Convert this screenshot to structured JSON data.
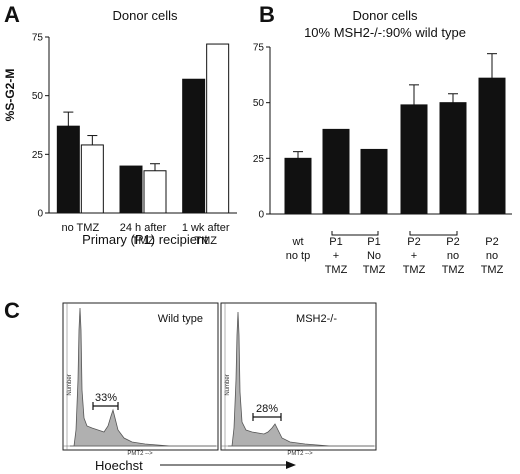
{
  "panels": {
    "a": {
      "letter": "A",
      "title": "Donor cells",
      "xlabel": "Primary (P1) recipient"
    },
    "b": {
      "letter": "B",
      "title_line1": "Donor cells",
      "title_line2": "10% MSH2-/-:90% wild type"
    },
    "c": {
      "letter": "C",
      "x_axis_label": "Hoechst",
      "histograms": [
        {
          "title": "Wild type",
          "percent": "33%",
          "y_label": "Number",
          "x_label": "PMT2 -->"
        },
        {
          "title": "MSH2-/-",
          "percent": "28%",
          "y_label": "Number",
          "x_label": "PMT2 -->"
        }
      ]
    }
  },
  "chart_data": [
    {
      "type": "bar",
      "title": "Donor cells",
      "ylabel": "%S-G2-M",
      "xlabel": "Primary (P1) recipient",
      "ylim": [
        0,
        75
      ],
      "yticks": [
        0,
        25,
        50,
        75
      ],
      "grid": false,
      "categories": [
        [
          "no TMZ"
        ],
        [
          "24 h after",
          "TMZ"
        ],
        [
          "1 wk after",
          "TMZ"
        ]
      ],
      "series": [
        {
          "color": "#111111",
          "values": [
            37,
            20,
            57
          ],
          "errors": [
            6,
            0,
            0
          ]
        },
        {
          "color": "#ffffff",
          "values": [
            29,
            18,
            72
          ],
          "errors": [
            4,
            3,
            0
          ]
        }
      ]
    },
    {
      "type": "bar",
      "title": "Donor cells 10% MSH2-/-:90% wild type",
      "ylim": [
        0,
        75
      ],
      "yticks": [
        0,
        25,
        50,
        75
      ],
      "grid": false,
      "categories": [
        [
          "wt",
          "no tp"
        ],
        [
          "P1",
          "+",
          "TMZ"
        ],
        [
          "P1",
          "No",
          "TMZ"
        ],
        [
          "P2",
          "+",
          "TMZ"
        ],
        [
          "P2",
          "no",
          "TMZ"
        ],
        [
          "P2",
          "no",
          "TMZ"
        ]
      ],
      "values": [
        25,
        38,
        29,
        49,
        50,
        61
      ],
      "errors": [
        3,
        0,
        0,
        9,
        4,
        11
      ],
      "color": "#111111",
      "brackets": [
        [
          1,
          2
        ],
        [
          3,
          4
        ]
      ]
    }
  ]
}
